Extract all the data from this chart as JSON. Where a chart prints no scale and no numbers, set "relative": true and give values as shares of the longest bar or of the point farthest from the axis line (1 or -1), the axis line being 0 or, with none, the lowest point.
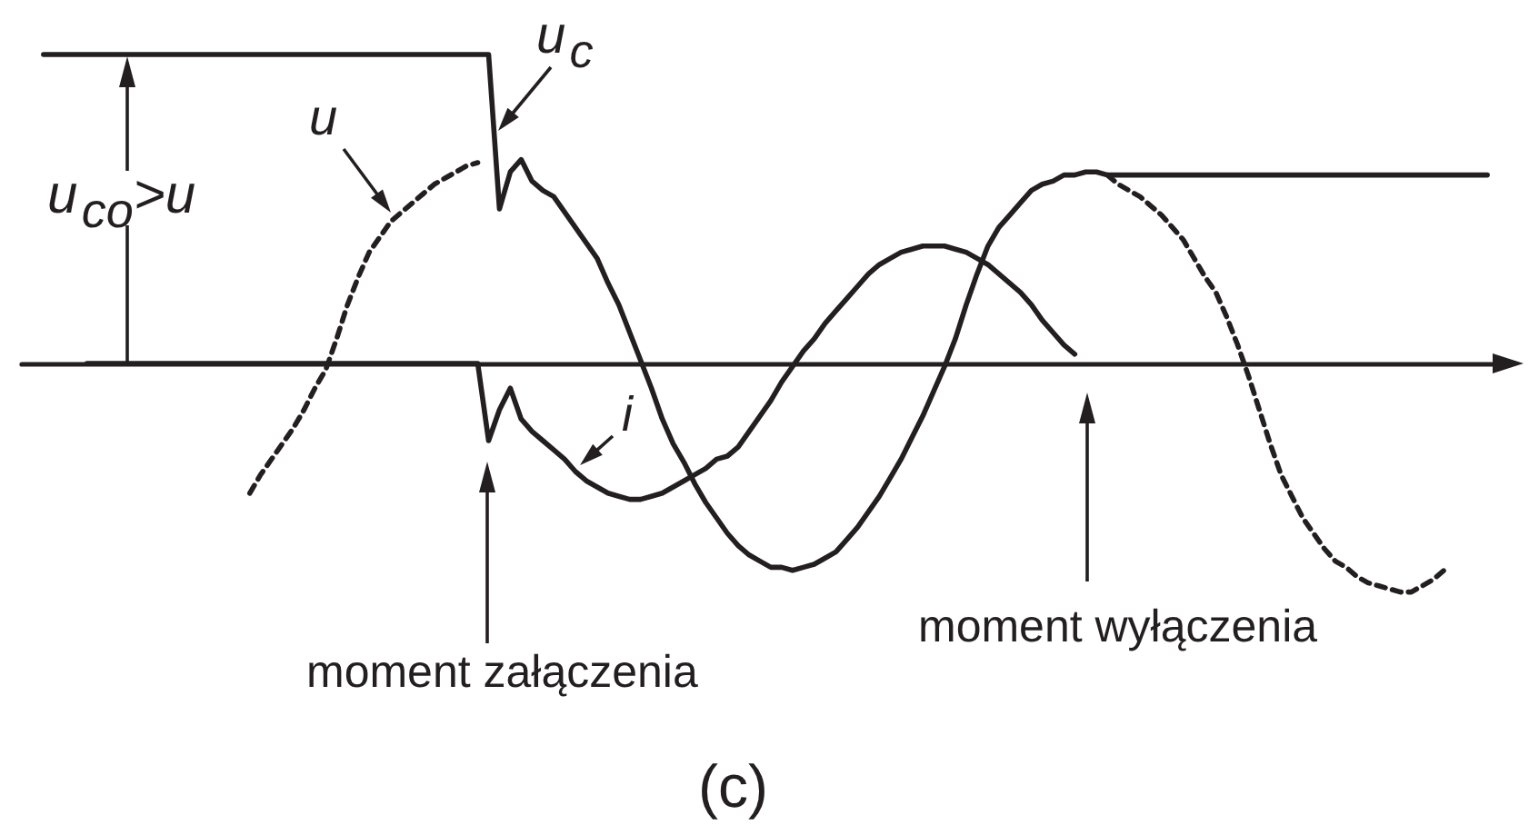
{
  "chart_data": {
    "type": "line",
    "relative": true,
    "marker": "none",
    "categories": [
      null,
      null,
      null,
      null,
      null,
      null,
      null,
      null,
      null,
      null,
      null,
      null,
      null,
      null,
      null,
      null,
      null,
      null,
      null,
      null,
      null,
      null,
      null,
      null,
      null,
      null,
      null,
      null,
      null,
      null,
      null,
      null,
      null,
      null,
      null,
      null,
      null,
      null,
      null,
      null,
      null,
      null,
      null,
      null,
      null,
      null,
      null,
      null,
      null,
      null,
      null,
      null,
      null,
      null,
      null,
      null,
      null,
      null,
      null,
      null,
      null,
      null,
      null,
      null,
      null,
      null,
      null,
      null,
      null,
      null,
      null,
      null,
      null,
      null,
      null,
      null,
      null,
      null,
      null,
      null,
      null,
      null,
      null,
      null,
      null,
      null,
      null,
      null,
      null,
      null,
      null,
      null,
      null,
      null,
      null,
      null,
      null,
      null,
      null,
      null,
      null,
      null,
      null,
      null,
      null,
      null,
      null,
      null,
      null,
      null,
      null,
      null,
      null,
      null,
      null,
      null,
      null,
      null,
      null,
      null,
      null,
      null,
      null,
      null,
      null,
      null,
      null,
      null,
      null,
      null,
      null,
      null,
      null,
      null,
      null,
      null,
      null,
      null
    ],
    "series": [
      {
        "name": "u$_{c}$",
        "color": "#231f20",
        "line_style": "solid",
        "values": [
          null,
          null,
          1,
          1,
          1,
          1,
          1,
          1,
          1,
          1,
          1,
          1,
          1,
          1,
          1,
          1,
          1,
          1,
          1,
          1,
          1,
          1,
          1,
          1,
          1,
          1,
          1,
          1,
          1,
          1,
          1,
          1,
          1,
          1,
          1,
          1,
          1,
          1,
          1,
          1,
          1,
          1,
          1,
          1,
          0.5,
          0.62,
          0.66,
          0.59,
          0.56,
          0.54,
          0.49,
          0.44,
          0.39,
          0.34,
          0.26,
          0.19,
          0.1,
          0.01,
          -0.08,
          -0.18,
          -0.26,
          -0.32,
          -0.39,
          -0.45,
          -0.5,
          -0.55,
          -0.59,
          -0.62,
          -0.64,
          -0.66,
          -0.66,
          -0.67,
          -0.66,
          -0.65,
          -0.63,
          -0.61,
          -0.57,
          -0.53,
          -0.48,
          -0.43,
          -0.37,
          -0.31,
          -0.24,
          -0.17,
          -0.09,
          -0.01,
          0.08,
          0.19,
          0.29,
          0.38,
          0.44,
          0.48,
          0.52,
          0.56,
          0.58,
          0.59,
          0.61,
          0.61,
          0.62,
          0.62,
          0.61,
          0.61,
          0.61,
          0.61,
          0.61,
          0.61,
          0.61,
          0.61,
          0.61,
          0.61,
          0.61,
          0.61,
          0.61,
          0.61,
          0.61,
          0.61,
          0.61,
          0.61,
          0.61,
          0.61,
          0.61,
          0.61,
          0.61,
          0.61,
          0.61,
          0.61,
          0.61,
          0.61,
          0.61,
          0.61,
          0.61,
          0.61,
          0.61,
          0.61,
          0.61,
          0.61,
          null,
          null
        ]
      },
      {
        "name": "u",
        "color": "#231f20",
        "line_style": "dashed",
        "values": [
          null,
          null,
          null,
          null,
          null,
          null,
          null,
          null,
          null,
          null,
          null,
          null,
          null,
          null,
          null,
          null,
          null,
          null,
          null,
          null,
          null,
          -0.42,
          -0.36,
          -0.31,
          -0.26,
          -0.21,
          -0.15,
          -0.08,
          -0.02,
          0.08,
          0.19,
          0.28,
          0.36,
          0.41,
          0.46,
          0.49,
          0.52,
          0.55,
          0.58,
          0.6,
          0.62,
          0.64,
          0.65,
          null,
          null,
          null,
          null,
          null,
          null,
          null,
          null,
          null,
          null,
          null,
          null,
          null,
          null,
          null,
          null,
          null,
          null,
          null,
          null,
          null,
          null,
          null,
          null,
          null,
          null,
          null,
          null,
          null,
          null,
          null,
          null,
          null,
          null,
          null,
          null,
          null,
          null,
          null,
          null,
          null,
          null,
          null,
          null,
          null,
          null,
          null,
          null,
          null,
          null,
          null,
          null,
          null,
          null,
          null,
          null,
          null,
          0.61,
          0.58,
          0.56,
          0.54,
          0.51,
          0.48,
          0.44,
          0.4,
          0.34,
          0.28,
          0.23,
          0.15,
          0.06,
          -0.04,
          -0.15,
          -0.26,
          -0.36,
          -0.43,
          -0.5,
          -0.55,
          -0.6,
          -0.64,
          -0.66,
          -0.69,
          -0.71,
          -0.72,
          -0.73,
          -0.74,
          -0.74,
          -0.72,
          -0.7,
          -0.67,
          null,
          null,
          null,
          null,
          null,
          null
        ]
      },
      {
        "name": "i",
        "color": "#231f20",
        "line_style": "solid",
        "values": [
          null,
          null,
          null,
          null,
          null,
          null,
          0,
          0,
          0,
          0,
          0,
          0,
          0,
          0,
          0,
          0,
          0,
          0,
          0,
          0,
          0,
          0,
          0,
          0,
          0,
          0,
          0,
          0,
          0,
          0,
          0,
          0,
          0,
          0,
          0,
          0,
          0,
          0,
          0,
          0,
          0,
          0,
          0,
          -0.25,
          -0.15,
          -0.08,
          -0.18,
          -0.22,
          -0.25,
          -0.28,
          -0.31,
          -0.35,
          -0.38,
          -0.4,
          -0.42,
          -0.43,
          -0.44,
          -0.44,
          -0.43,
          -0.42,
          -0.4,
          -0.38,
          -0.36,
          -0.34,
          -0.31,
          -0.3,
          -0.27,
          -0.22,
          -0.17,
          -0.12,
          -0.06,
          -0.01,
          0.04,
          0.08,
          0.13,
          0.17,
          0.21,
          0.25,
          0.29,
          0.32,
          0.34,
          0.36,
          0.37,
          0.38,
          0.38,
          0.38,
          0.37,
          0.36,
          0.34,
          0.32,
          0.29,
          0.26,
          0.23,
          0.19,
          0.14,
          0.1,
          0.06,
          0.03,
          null,
          null,
          null,
          null,
          null,
          null,
          null,
          null,
          null,
          null,
          null,
          null,
          null,
          null,
          null,
          null,
          null,
          null,
          null,
          null,
          null,
          null,
          null,
          null,
          null,
          null,
          null,
          null,
          null,
          null,
          null,
          null,
          null,
          null,
          null,
          null,
          null,
          null,
          null,
          null
        ]
      }
    ],
    "annotations": [
      "u$_{co}$>u",
      "moment załączenia",
      "moment wyłączenia",
      "(c)"
    ]
  }
}
